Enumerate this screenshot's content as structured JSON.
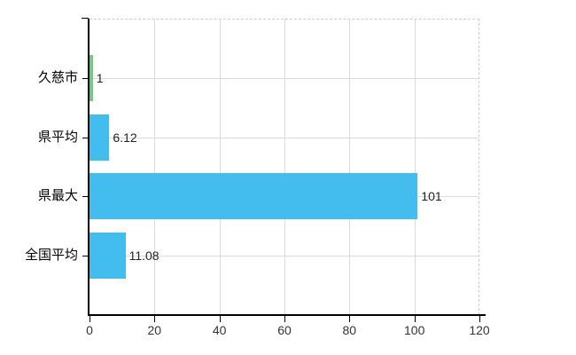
{
  "chart_data": {
    "type": "bar",
    "orientation": "horizontal",
    "title": "",
    "xlabel": "",
    "ylabel": "",
    "categories": [
      "久慈市",
      "県平均",
      "県最大",
      "全国平均"
    ],
    "values": [
      1,
      6.12,
      101,
      11.08
    ],
    "value_labels": [
      "1",
      "6.12",
      "101",
      "11.08"
    ],
    "x_ticks": [
      0,
      20,
      40,
      60,
      80,
      100,
      120
    ],
    "xlim": [
      0,
      120
    ],
    "grid": true,
    "legend": false,
    "highlight_index": 0,
    "colors": {
      "bar_default": "#42BDEE",
      "bar_highlight": "#6FCA86",
      "gridline": "#DADADA",
      "dashed_border": "#CCCCCC",
      "axis": "#000000",
      "value_text": "#222222",
      "category_text": "#000000",
      "tick_text": "#333333",
      "background": "#FFFFFF"
    }
  }
}
